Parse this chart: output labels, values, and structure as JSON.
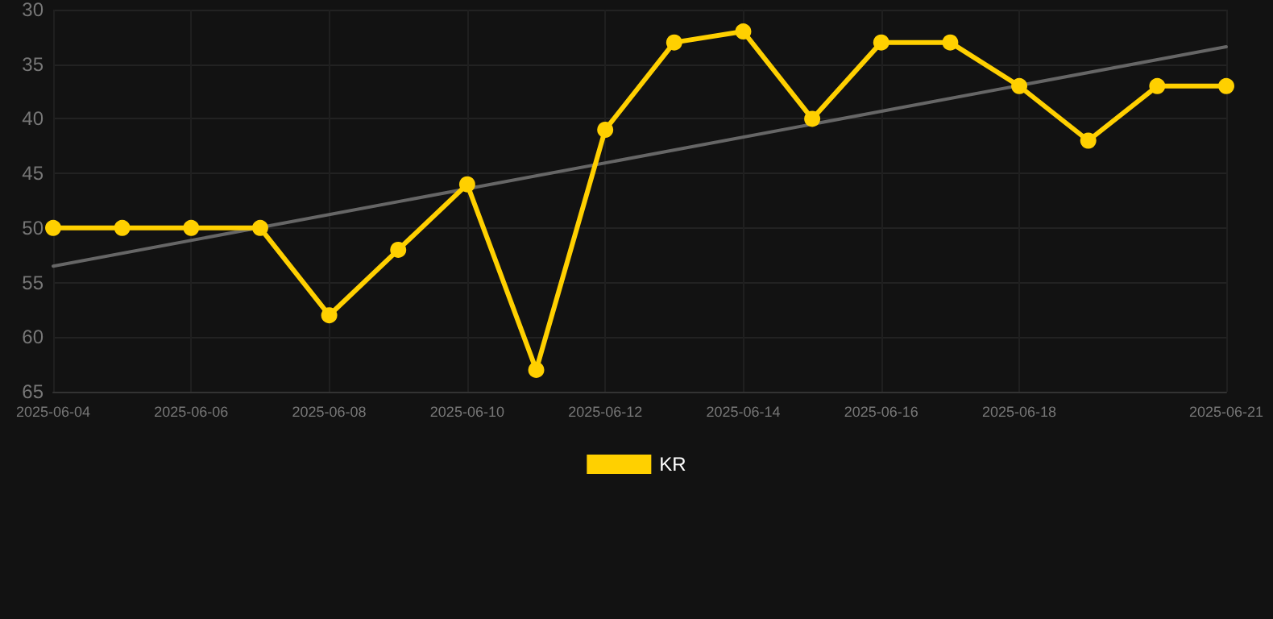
{
  "chart_data": {
    "type": "line",
    "x": [
      "2025-06-04",
      "2025-06-05",
      "2025-06-06",
      "2025-06-07",
      "2025-06-08",
      "2025-06-09",
      "2025-06-10",
      "2025-06-11",
      "2025-06-12",
      "2025-06-13",
      "2025-06-14",
      "2025-06-15",
      "2025-06-16",
      "2025-06-17",
      "2025-06-18",
      "2025-06-19",
      "2025-06-20",
      "2025-06-21"
    ],
    "series": [
      {
        "name": "KR",
        "color": "#ffd000",
        "values": [
          50,
          50,
          50,
          50,
          58,
          52,
          46,
          63,
          41,
          33,
          32,
          40,
          33,
          33,
          37,
          42,
          37,
          37
        ]
      },
      {
        "type": "line",
        "color": "#666666",
        "marker": "none",
        "x": [
          "2025-06-04",
          "2025-06-21"
        ],
        "values": [
          53.5,
          33.4
        ]
      }
    ],
    "xlim": [
      "2025-06-04",
      "2025-06-21"
    ],
    "xticks": [
      "2025-06-04",
      "2025-06-06",
      "2025-06-08",
      "2025-06-10",
      "2025-06-12",
      "2025-06-14",
      "2025-06-16",
      "2025-06-18",
      "2025-06-21"
    ],
    "ylim": [
      65,
      30
    ],
    "yticks": [
      30,
      35,
      40,
      45,
      50,
      55,
      60,
      65
    ],
    "grid": true,
    "legend": "bottom",
    "marker": "circle",
    "line_style": "solid"
  }
}
